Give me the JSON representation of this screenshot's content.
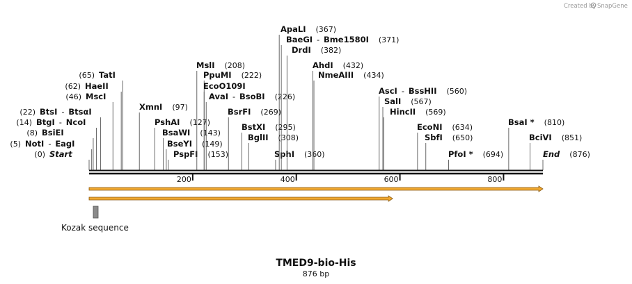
{
  "watermark": {
    "prefix": "Created by",
    "brand": "SnapGene"
  },
  "sequence": {
    "name": "TMED9-bio-His",
    "length_label": "876 bp",
    "length": 876
  },
  "ruler": {
    "ticks": [
      200,
      400,
      600,
      800
    ]
  },
  "sites": [
    {
      "name": "Start",
      "pos": 0,
      "label": "(0)",
      "italic": true
    },
    {
      "name": "NotI",
      "partner": "EagI",
      "pos": 5,
      "label": "(5)"
    },
    {
      "name": "BsiEI",
      "pos": 8,
      "label": "(8)"
    },
    {
      "name": "BtgI",
      "partner": "NcoI",
      "pos": 14,
      "label": "(14)"
    },
    {
      "name": "BtsI",
      "partner": "BtsαI",
      "pos": 22,
      "label": "(22)"
    },
    {
      "name": "MscI",
      "pos": 46,
      "label": "(46)"
    },
    {
      "name": "HaeII",
      "pos": 62,
      "label": "(62)"
    },
    {
      "name": "TatI",
      "pos": 65,
      "label": "(65)"
    },
    {
      "name": "XmnI",
      "pos": 97,
      "label": "(97)"
    },
    {
      "name": "PshAI",
      "pos": 127,
      "label": "(127)"
    },
    {
      "name": "BsaWI",
      "pos": 143,
      "label": "(143)"
    },
    {
      "name": "BseYI",
      "pos": 149,
      "label": "(149)"
    },
    {
      "name": "PspFI",
      "pos": 153,
      "label": "(153)"
    },
    {
      "name": "MslI",
      "pos": 208,
      "label": "(208)"
    },
    {
      "name": "PpuMI",
      "pos": 222,
      "label": "(222)"
    },
    {
      "name": "EcoO109I",
      "pos": 222,
      "label": ""
    },
    {
      "name": "AvaI",
      "partner": "BsoBI",
      "pos": 226,
      "label": "(226)"
    },
    {
      "name": "BsrFI",
      "pos": 269,
      "label": "(269)"
    },
    {
      "name": "BstXI",
      "pos": 295,
      "label": "(295)"
    },
    {
      "name": "BglII",
      "pos": 308,
      "label": "(308)"
    },
    {
      "name": "SphI",
      "pos": 360,
      "label": "(360)"
    },
    {
      "name": "ApaLI",
      "pos": 367,
      "label": "(367)"
    },
    {
      "name": "BaeGI",
      "partner": "Bme1580I",
      "pos": 371,
      "label": "(371)"
    },
    {
      "name": "DrdI",
      "pos": 382,
      "label": "(382)"
    },
    {
      "name": "AhdI",
      "pos": 432,
      "label": "(432)"
    },
    {
      "name": "NmeAIII",
      "pos": 434,
      "label": "(434)"
    },
    {
      "name": "AscI",
      "partner": "BssHII",
      "pos": 560,
      "label": "(560)"
    },
    {
      "name": "SalI",
      "pos": 567,
      "label": "(567)"
    },
    {
      "name": "HincII",
      "pos": 569,
      "label": "(569)"
    },
    {
      "name": "EcoNI",
      "pos": 634,
      "label": "(634)"
    },
    {
      "name": "SbfI",
      "pos": 650,
      "label": "(650)"
    },
    {
      "name": "PfoI *",
      "pos": 694,
      "label": "(694)"
    },
    {
      "name": "BsaI *",
      "pos": 810,
      "label": "(810)"
    },
    {
      "name": "BciVI",
      "pos": 851,
      "label": "(851)"
    },
    {
      "name": "End",
      "pos": 876,
      "label": "(876)",
      "italic": true
    }
  ],
  "features": [
    {
      "name": "Kozak sequence",
      "start": 0,
      "end": 6,
      "type": "misc",
      "color": "#8a8a8a"
    }
  ],
  "orfs": [
    {
      "start": 0,
      "end": 876,
      "color": "#f0a830"
    },
    {
      "start": 0,
      "end": 586,
      "color": "#f0a830"
    }
  ],
  "colors": {
    "backbone": "#111111",
    "orf_fill": "#f0a830",
    "orf_stroke": "#8a5a10"
  }
}
